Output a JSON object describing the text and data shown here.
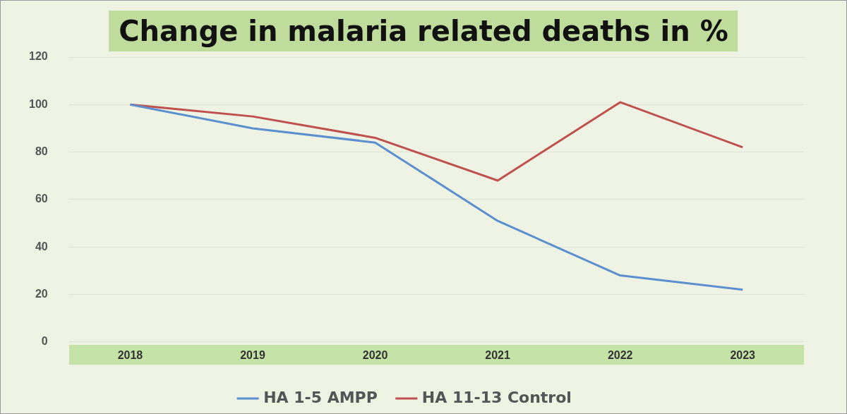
{
  "chart_data": {
    "type": "line",
    "title": "Change in malaria related deaths in %",
    "categories": [
      "2018",
      "2019",
      "2020",
      "2021",
      "2022",
      "2023"
    ],
    "series": [
      {
        "name": "HA 1-5 AMPP",
        "color": "#5b8fd0",
        "values": [
          100,
          90,
          84,
          51,
          28,
          22
        ]
      },
      {
        "name": "HA 11-13 Control",
        "color": "#c0504d",
        "values": [
          100,
          95,
          86,
          68,
          101,
          82
        ]
      }
    ],
    "ylim": [
      0,
      120
    ],
    "yticks": [
      0,
      20,
      40,
      60,
      80,
      100,
      120
    ],
    "grid": "y",
    "legend": "bottom",
    "marker": "none",
    "line_style": "solid"
  }
}
